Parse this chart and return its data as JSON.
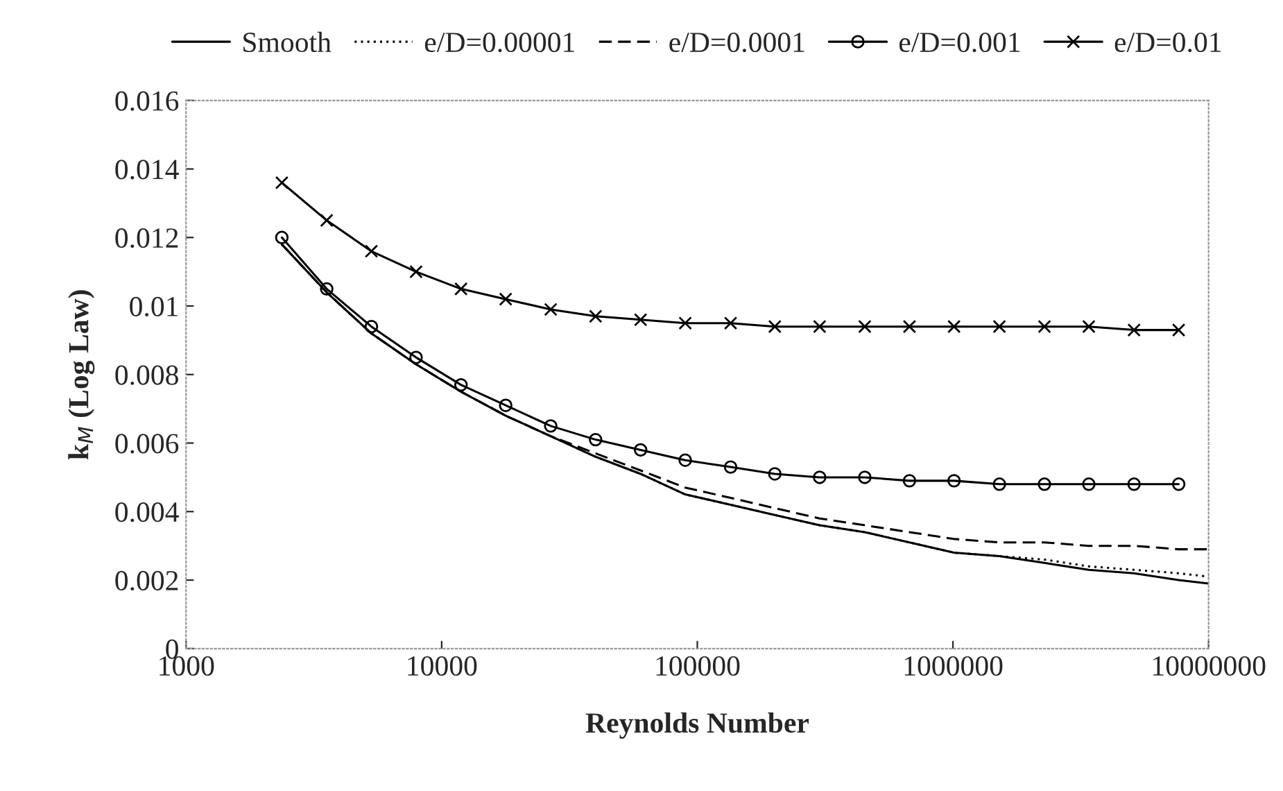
{
  "chart_data": {
    "type": "line",
    "xlabel": "Reynolds Number",
    "ylabel": "k$_{M}$ (Log Law)",
    "log": "x",
    "xlim": [
      1000,
      10000000
    ],
    "xticks": [
      1000,
      10000,
      100000,
      1000000,
      10000000
    ],
    "ylim": [
      0,
      0.016
    ],
    "yticks": [
      0,
      0.002,
      0.004,
      0.006,
      0.008,
      0.01,
      0.012,
      0.014,
      0.016
    ],
    "grid": false,
    "legend": "top",
    "series": [
      {
        "name": "Smooth",
        "color": "#000000",
        "line_style": "solid",
        "marker": "none",
        "x": [
          2370,
          3550,
          5310,
          7940,
          11900,
          17800,
          26700,
          40000,
          60000,
          89700,
          135000,
          201000,
          301000,
          452000,
          676000,
          1010000,
          1520000,
          2280000,
          3400000,
          5110000,
          7640000,
          10000000
        ],
        "values": [
          0.0118,
          0.0104,
          0.0092,
          0.0083,
          0.0075,
          0.0068,
          0.0062,
          0.0056,
          0.0051,
          0.0045,
          0.0042,
          0.0039,
          0.0036,
          0.0034,
          0.0031,
          0.0028,
          0.0027,
          0.0025,
          0.0023,
          0.0022,
          0.002,
          0.0019
        ]
      },
      {
        "name": "e/D=0.00001",
        "color": "#000000",
        "line_style": "dotted",
        "marker": "none",
        "x": [
          2370,
          3550,
          5310,
          7940,
          11900,
          17800,
          26700,
          40000,
          60000,
          89700,
          135000,
          201000,
          301000,
          452000,
          676000,
          1010000,
          1520000,
          2280000,
          3400000,
          5110000,
          7640000,
          10000000
        ],
        "values": [
          0.0118,
          0.0104,
          0.0092,
          0.0083,
          0.0075,
          0.0068,
          0.0062,
          0.0056,
          0.0051,
          0.0045,
          0.0042,
          0.0039,
          0.0036,
          0.0034,
          0.0031,
          0.0028,
          0.0027,
          0.0026,
          0.0024,
          0.0023,
          0.0022,
          0.0021
        ]
      },
      {
        "name": "e/D=0.0001",
        "color": "#000000",
        "line_style": "dashed",
        "marker": "none",
        "x": [
          2370,
          3550,
          5310,
          7940,
          11900,
          17800,
          26700,
          40000,
          60000,
          89700,
          135000,
          201000,
          301000,
          452000,
          676000,
          1010000,
          1520000,
          2280000,
          3400000,
          5110000,
          7640000,
          10000000
        ],
        "values": [
          0.0118,
          0.0104,
          0.0092,
          0.0083,
          0.0075,
          0.0068,
          0.0062,
          0.0057,
          0.0052,
          0.0047,
          0.0044,
          0.0041,
          0.0038,
          0.0036,
          0.0034,
          0.0032,
          0.0031,
          0.0031,
          0.003,
          0.003,
          0.0029,
          0.0029
        ]
      },
      {
        "name": "e/D=0.001",
        "color": "#000000",
        "line_style": "solid",
        "marker": "circle",
        "x": [
          2370,
          3550,
          5310,
          7940,
          11900,
          17800,
          26700,
          40000,
          60000,
          89700,
          135000,
          201000,
          301000,
          452000,
          676000,
          1010000,
          1520000,
          2280000,
          3400000,
          5110000,
          7640000
        ],
        "values": [
          0.012,
          0.0105,
          0.0094,
          0.0085,
          0.0077,
          0.0071,
          0.0065,
          0.0061,
          0.0058,
          0.0055,
          0.0053,
          0.0051,
          0.005,
          0.005,
          0.0049,
          0.0049,
          0.0048,
          0.0048,
          0.0048,
          0.0048,
          0.0048
        ]
      },
      {
        "name": "e/D=0.01",
        "color": "#000000",
        "line_style": "solid",
        "marker": "cross",
        "x": [
          2370,
          3550,
          5310,
          7940,
          11900,
          17800,
          26700,
          40000,
          60000,
          89700,
          135000,
          201000,
          301000,
          452000,
          676000,
          1010000,
          1520000,
          2280000,
          3400000,
          5110000,
          7640000
        ],
        "values": [
          0.0136,
          0.0125,
          0.0116,
          0.011,
          0.0105,
          0.0102,
          0.0099,
          0.0097,
          0.0096,
          0.0095,
          0.0095,
          0.0094,
          0.0094,
          0.0094,
          0.0094,
          0.0094,
          0.0094,
          0.0094,
          0.0094,
          0.0093,
          0.0093
        ]
      }
    ]
  }
}
